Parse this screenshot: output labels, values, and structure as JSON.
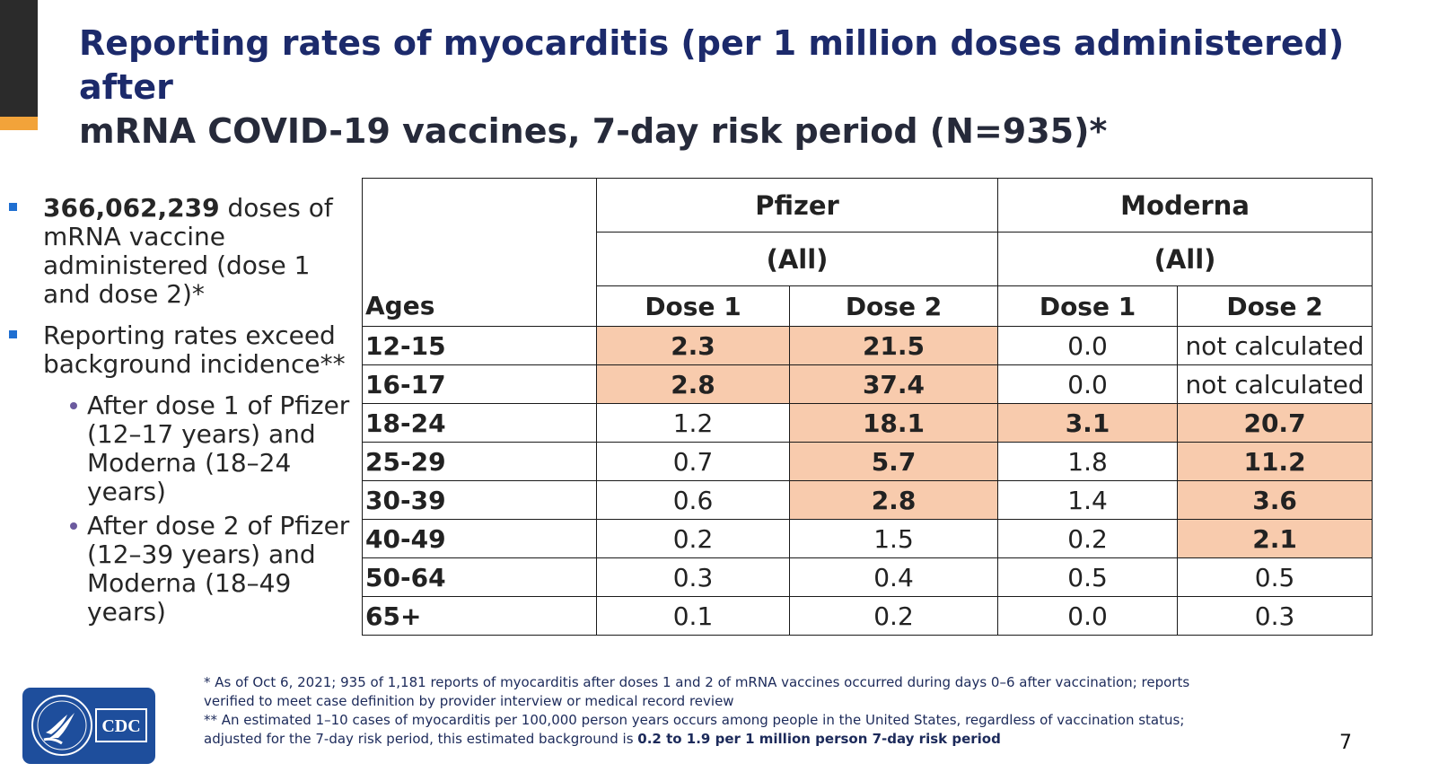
{
  "title": {
    "line1": "Reporting rates of myocarditis (per 1 million doses administered) after",
    "line2": "mRNA COVID-19 vaccines, 7-day risk period (N=935)*"
  },
  "bullets": {
    "b1_bold": "366,062,239",
    "b1_rest": " doses of mRNA vaccine administered (dose 1 and dose 2)*",
    "b2": "Reporting rates exceed background incidence**",
    "sub1": "After dose 1 of Pfizer (12–17 years) and Moderna (18–24 years)",
    "sub2": "After dose 2 of Pfizer (12–39 years) and Moderna (18–49 years)"
  },
  "table": {
    "pfizer": "Pfizer",
    "moderna": "Moderna",
    "pfizer_all": "(All)",
    "moderna_all": "(All)",
    "ages": "Ages",
    "dose1": "Dose 1",
    "dose2": "Dose 2",
    "rows": [
      {
        "age": "12-15",
        "p1": "2.3",
        "p2": "21.5",
        "m1": "0.0",
        "m2": "not calculated"
      },
      {
        "age": "16-17",
        "p1": "2.8",
        "p2": "37.4",
        "m1": "0.0",
        "m2": "not calculated"
      },
      {
        "age": "18-24",
        "p1": "1.2",
        "p2": "18.1",
        "m1": "3.1",
        "m2": "20.7"
      },
      {
        "age": "25-29",
        "p1": "0.7",
        "p2": "5.7",
        "m1": "1.8",
        "m2": "11.2"
      },
      {
        "age": "30-39",
        "p1": "0.6",
        "p2": "2.8",
        "m1": "1.4",
        "m2": "3.6"
      },
      {
        "age": "40-49",
        "p1": "0.2",
        "p2": "1.5",
        "m1": "0.2",
        "m2": "2.1"
      },
      {
        "age": "50-64",
        "p1": "0.3",
        "p2": "0.4",
        "m1": "0.5",
        "m2": "0.5"
      },
      {
        "age": "65+",
        "p1": "0.1",
        "p2": "0.2",
        "m1": "0.0",
        "m2": "0.3"
      }
    ],
    "highlight_color": "#f8cbad"
  },
  "footnote": {
    "n1": "* As of Oct 6, 2021; 935 of 1,181 reports  of myocarditis after doses 1 and 2 of mRNA vaccines occurred during days 0–6 after vaccination; reports verified to meet case definition by provider interview or medical record review",
    "n2_plain": "** An estimated 1–10 cases of myocarditis per 100,000 person years occurs among people in the United States, regardless of vaccination status; adjusted for the 7-day risk period, this estimated background is ",
    "n2_bold": "0.2 to 1.9 per 1 million person 7-day risk period"
  },
  "logo_text": "CDC",
  "page_number": "7",
  "colors": {
    "title": "#1c2a6b",
    "accent_gold": "#f2a33a",
    "logo_blue": "#1e4e9c"
  }
}
